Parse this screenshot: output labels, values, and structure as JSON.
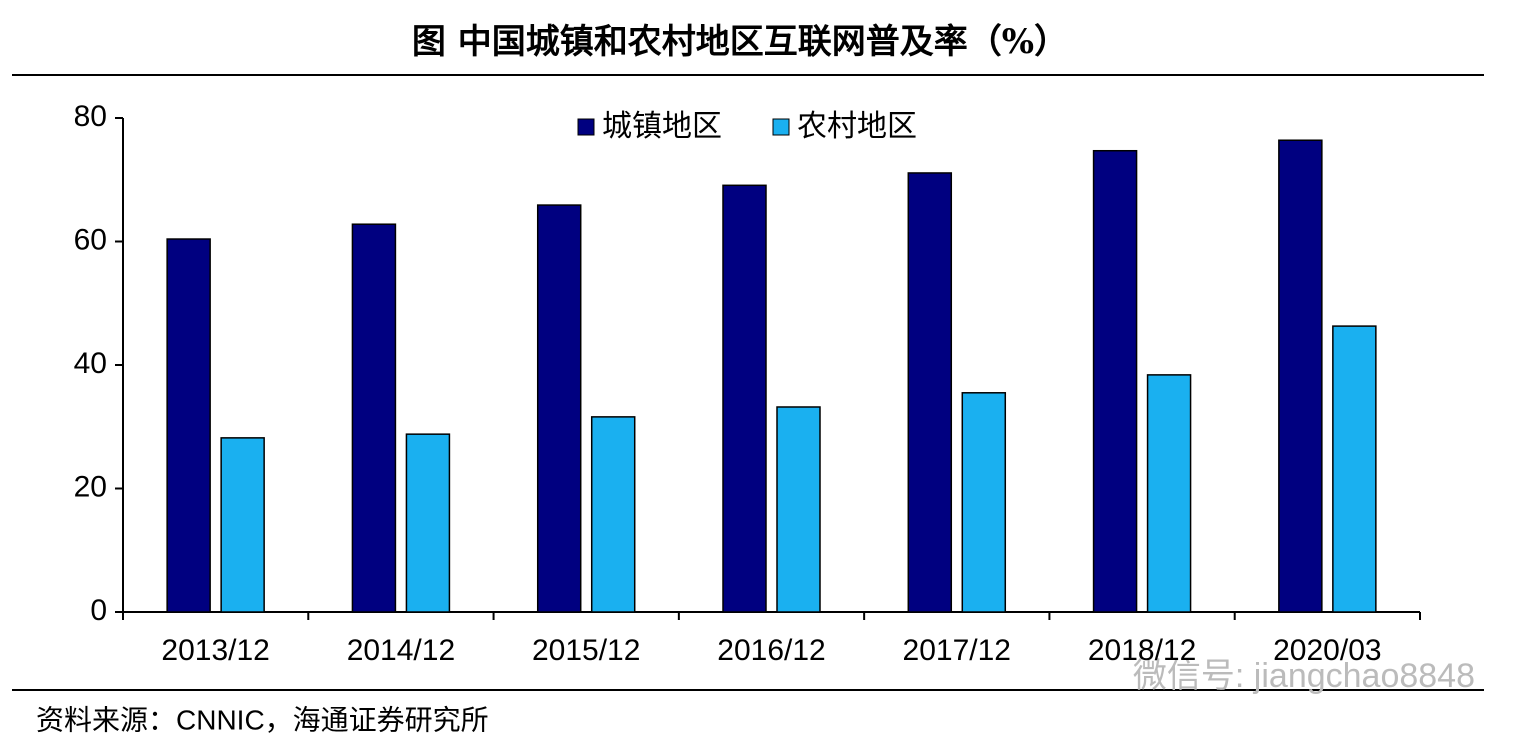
{
  "chart_data": {
    "type": "bar",
    "title": "图  中国城镇和农村地区互联网普及率（%）",
    "categories": [
      "2013/12",
      "2014/12",
      "2015/12",
      "2016/12",
      "2017/12",
      "2018/12",
      "2020/03"
    ],
    "series": [
      {
        "name": "城镇地区",
        "color": "#000080",
        "values": [
          60.4,
          62.8,
          65.9,
          69.1,
          71.1,
          74.7,
          76.4
        ]
      },
      {
        "name": "农村地区",
        "color": "#1ab0f0",
        "values": [
          28.2,
          28.8,
          31.6,
          33.2,
          35.5,
          38.4,
          46.3
        ]
      }
    ],
    "ylim": [
      0,
      80
    ],
    "yticks": [
      0,
      20,
      40,
      60,
      80
    ],
    "legend": "top",
    "source": "资料来源：CNNIC，海通证券研究所",
    "watermark": "微信号: jiangchao8848"
  }
}
